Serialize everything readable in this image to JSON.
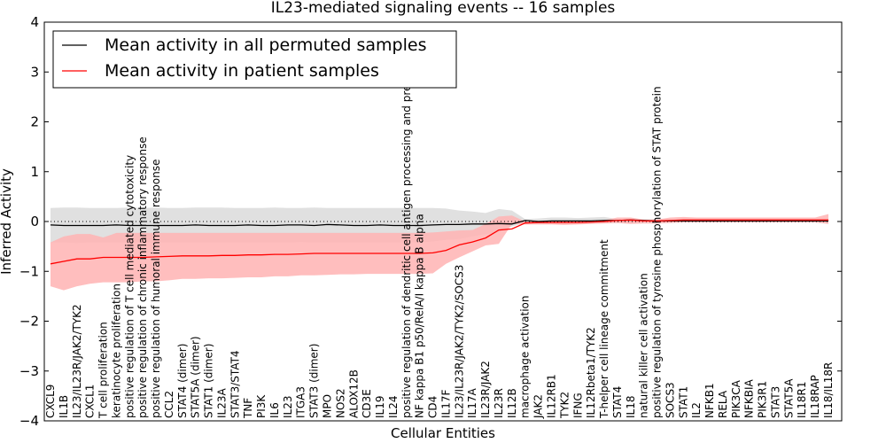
{
  "chart_data": {
    "type": "line",
    "title": "IL23-mediated signaling events -- 16 samples",
    "xlabel": "Cellular Entities",
    "ylabel": "Inferred Activity",
    "ylim": [
      -4,
      4
    ],
    "yticks": [
      4,
      3,
      2,
      1,
      0,
      -1,
      -2,
      -3,
      -4
    ],
    "ytick_labels": [
      "4",
      "3",
      "2",
      "1",
      "0",
      "−1",
      "−2",
      "−3",
      "−4"
    ],
    "reference_line": 0,
    "grid": false,
    "legend": {
      "placement": "top-left",
      "entries": [
        {
          "label": "Mean activity in all permuted samples",
          "color": "#000000"
        },
        {
          "label": "Mean activity in patient samples",
          "color": "#ff0000"
        }
      ]
    },
    "colors": {
      "permuted_line": "#000000",
      "permuted_band": "#e0e0e0",
      "patient_line": "#ff0000",
      "patient_band": "#ffb3b3",
      "overlap_band": "#e6a3a3"
    },
    "categories": [
      "CXCL9",
      "IL1B",
      "IL23/IL23R/JAK2/TYK2",
      "CXCL1",
      "T cell proliferation",
      "keratinocyte proliferation",
      "positive regulation of T cell mediated cytotoxicity",
      "positive regulation of chronic inflammatory response",
      "positive regulation of humoral immune response",
      "CCL2",
      "STAT4 (dimer)",
      "STAT5A (dimer)",
      "STAT1 (dimer)",
      "IL23A",
      "STAT3/STAT4",
      "TNF",
      "PI3K",
      "IL6",
      "IL23",
      "ITGA3",
      "STAT3 (dimer)",
      "MPO",
      "NOS2",
      "ALOX12B",
      "CD3E",
      "IL19",
      "IL24",
      "positive regulation of dendritic cell antigen processing and presentation",
      "NF kappa B1 p50/RelA/I kappa B alpha",
      "CD4",
      "IL17F",
      "IL23/IL23R/JAK2/TYK2/SOCS3",
      "IL17A",
      "IL23R/JAK2",
      "IL23R",
      "IL12B",
      "macrophage activation",
      "JAK2",
      "IL12RB1",
      "TYK2",
      "IFNG",
      "IL12Rbeta1/TYK2",
      "T-helper cell lineage commitment",
      "STAT4",
      "IL18",
      "natural killer cell activation",
      "positive regulation of tyrosine phosphorylation of STAT protein",
      "SOCS3",
      "STAT1",
      "IL2",
      "NFKB1",
      "RELA",
      "PIK3CA",
      "NFKBIA",
      "PIK3R1",
      "STAT3",
      "STAT5A",
      "IL18R1",
      "IL18RAP",
      "IL18/IL18R"
    ],
    "series": [
      {
        "name": "Mean activity in all permuted samples",
        "values": [
          -0.07,
          -0.08,
          -0.08,
          -0.08,
          -0.08,
          -0.07,
          -0.08,
          -0.08,
          -0.08,
          -0.08,
          -0.08,
          -0.07,
          -0.08,
          -0.08,
          -0.08,
          -0.07,
          -0.08,
          -0.08,
          -0.07,
          -0.07,
          -0.08,
          -0.06,
          -0.07,
          -0.08,
          -0.08,
          -0.07,
          -0.08,
          -0.08,
          -0.08,
          -0.07,
          -0.06,
          -0.06,
          -0.05,
          -0.05,
          -0.04,
          -0.05,
          0.02,
          0.0,
          0.01,
          0.01,
          0.01,
          0.01,
          0.02,
          0.02,
          0.03,
          0.02,
          0.01,
          0.01,
          0.01,
          0.01,
          0.01,
          0.01,
          0.01,
          0.01,
          0.01,
          0.01,
          0.01,
          0.01,
          0.01,
          0.01
        ],
        "band_low": [
          -0.42,
          -0.42,
          -0.43,
          -0.42,
          -0.42,
          -0.42,
          -0.42,
          -0.41,
          -0.42,
          -0.42,
          -0.42,
          -0.42,
          -0.42,
          -0.42,
          -0.42,
          -0.42,
          -0.42,
          -0.42,
          -0.42,
          -0.41,
          -0.42,
          -0.42,
          -0.42,
          -0.42,
          -0.42,
          -0.42,
          -0.42,
          -0.42,
          -0.42,
          -0.4,
          -0.37,
          -0.35,
          -0.3,
          -0.25,
          -0.22,
          -0.1,
          -0.03,
          -0.03,
          -0.03,
          -0.03,
          -0.03,
          -0.03,
          -0.03,
          -0.03,
          -0.02,
          -0.02,
          -0.02,
          -0.02,
          -0.02,
          -0.02,
          -0.02,
          -0.02,
          -0.02,
          -0.02,
          -0.02,
          -0.02,
          -0.02,
          -0.02,
          -0.02,
          -0.02
        ],
        "band_high": [
          0.27,
          0.28,
          0.28,
          0.27,
          0.27,
          0.27,
          0.28,
          0.27,
          0.28,
          0.27,
          0.27,
          0.28,
          0.28,
          0.28,
          0.27,
          0.27,
          0.27,
          0.28,
          0.27,
          0.27,
          0.28,
          0.27,
          0.27,
          0.27,
          0.27,
          0.27,
          0.27,
          0.27,
          0.27,
          0.27,
          0.26,
          0.22,
          0.2,
          0.17,
          0.25,
          0.22,
          0.05,
          0.06,
          0.08,
          0.08,
          0.07,
          0.08,
          0.09,
          0.05,
          0.05,
          0.04,
          0.04,
          0.04,
          0.04,
          0.04,
          0.04,
          0.04,
          0.04,
          0.04,
          0.04,
          0.04,
          0.04,
          0.04,
          0.04,
          0.04
        ]
      },
      {
        "name": "Mean activity in patient samples",
        "values": [
          -0.85,
          -0.8,
          -0.75,
          -0.75,
          -0.72,
          -0.72,
          -0.72,
          -0.72,
          -0.71,
          -0.7,
          -0.69,
          -0.69,
          -0.69,
          -0.68,
          -0.68,
          -0.67,
          -0.67,
          -0.66,
          -0.66,
          -0.65,
          -0.64,
          -0.64,
          -0.64,
          -0.64,
          -0.64,
          -0.64,
          -0.64,
          -0.64,
          -0.64,
          -0.63,
          -0.58,
          -0.47,
          -0.41,
          -0.33,
          -0.17,
          -0.15,
          -0.03,
          -0.02,
          -0.02,
          -0.02,
          -0.02,
          -0.01,
          0.0,
          0.02,
          0.03,
          0.01,
          0.01,
          0.02,
          0.03,
          0.03,
          0.03,
          0.03,
          0.03,
          0.03,
          0.03,
          0.03,
          0.03,
          0.03,
          0.03,
          0.03
        ],
        "band_low": [
          -1.3,
          -1.38,
          -1.3,
          -1.25,
          -1.22,
          -1.22,
          -1.22,
          -1.2,
          -1.2,
          -1.18,
          -1.15,
          -1.15,
          -1.14,
          -1.14,
          -1.13,
          -1.12,
          -1.12,
          -1.1,
          -1.1,
          -1.08,
          -1.08,
          -1.07,
          -1.06,
          -1.06,
          -1.05,
          -1.05,
          -1.05,
          -1.05,
          -1.05,
          -1.04,
          -0.85,
          -0.72,
          -0.6,
          -0.48,
          -0.45,
          -0.05,
          -0.06,
          -0.06,
          -0.06,
          -0.07,
          -0.06,
          -0.05,
          -0.04,
          -0.03,
          -0.05,
          -0.04,
          -0.04,
          -0.03,
          -0.02,
          -0.02,
          -0.02,
          -0.02,
          -0.02,
          -0.02,
          -0.02,
          -0.02,
          -0.02,
          -0.02,
          -0.02,
          -0.05
        ],
        "band_high": [
          -0.42,
          -0.3,
          -0.25,
          -0.25,
          -0.32,
          -0.23,
          -0.23,
          -0.23,
          -0.23,
          -0.23,
          -0.23,
          -0.23,
          -0.23,
          -0.23,
          -0.23,
          -0.23,
          -0.23,
          -0.23,
          -0.23,
          -0.23,
          -0.23,
          -0.23,
          -0.23,
          -0.23,
          -0.23,
          -0.23,
          -0.23,
          -0.23,
          -0.23,
          -0.22,
          -0.2,
          -0.18,
          -0.17,
          -0.05,
          0.1,
          0.12,
          0.0,
          0.0,
          0.0,
          0.0,
          0.01,
          0.01,
          0.03,
          0.08,
          0.08,
          0.04,
          0.04,
          0.08,
          0.09,
          0.08,
          0.08,
          0.08,
          0.08,
          0.08,
          0.08,
          0.08,
          0.08,
          0.08,
          0.08,
          0.15
        ]
      }
    ]
  }
}
